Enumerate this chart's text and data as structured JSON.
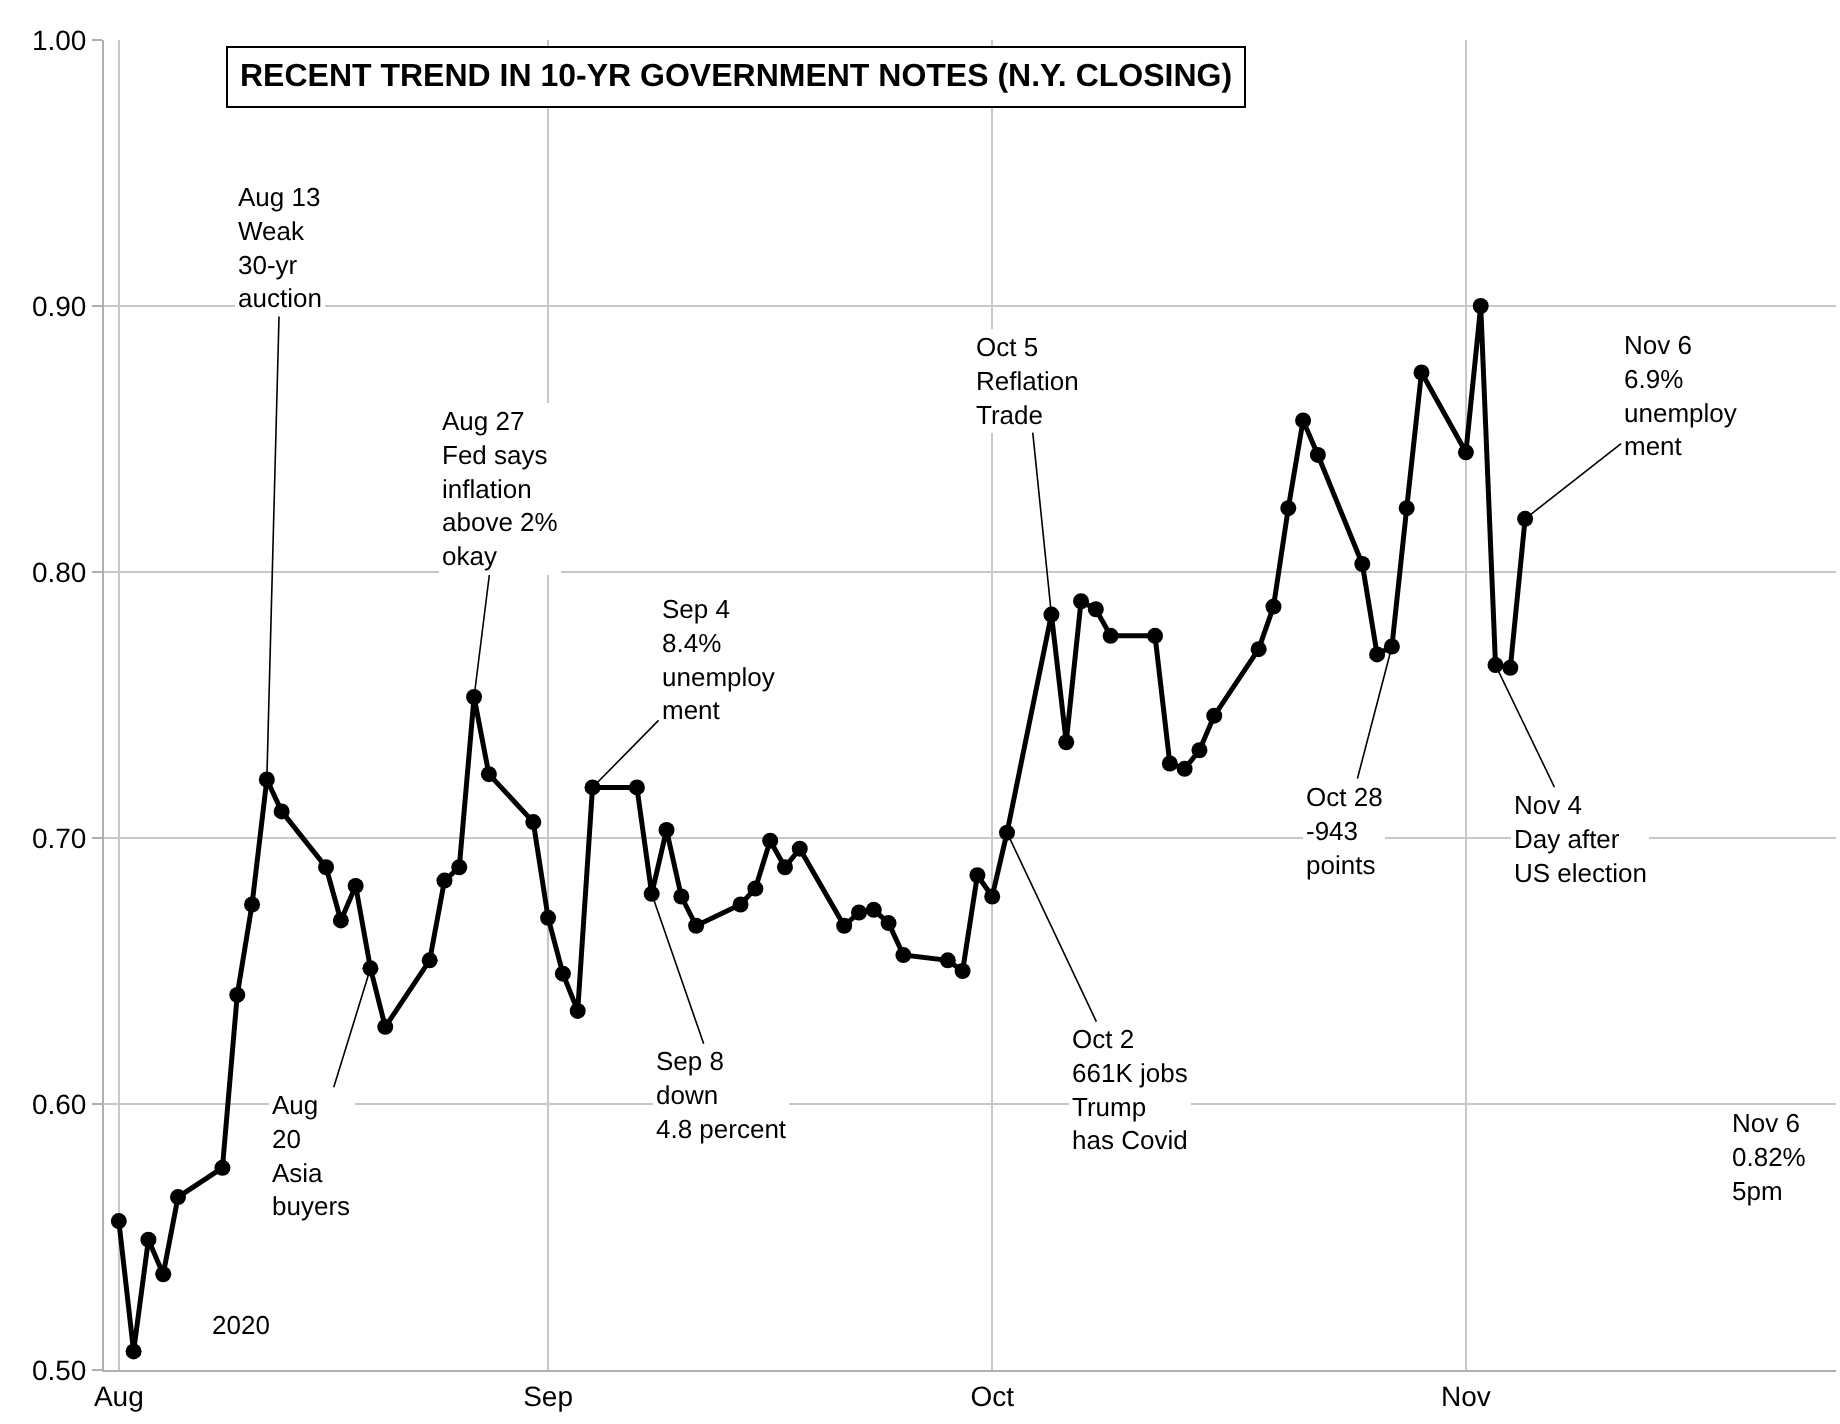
{
  "chart_data": {
    "type": "line",
    "title": "RECENT TREND IN 10-YR GOVERNMENT NOTES (N.Y. CLOSING)",
    "x": [
      "2020-08-03",
      "2020-08-04",
      "2020-08-05",
      "2020-08-06",
      "2020-08-07",
      "2020-08-10",
      "2020-08-11",
      "2020-08-12",
      "2020-08-13",
      "2020-08-14",
      "2020-08-17",
      "2020-08-18",
      "2020-08-19",
      "2020-08-20",
      "2020-08-21",
      "2020-08-24",
      "2020-08-25",
      "2020-08-26",
      "2020-08-27",
      "2020-08-28",
      "2020-08-31",
      "2020-09-01",
      "2020-09-02",
      "2020-09-03",
      "2020-09-04",
      "2020-09-07",
      "2020-09-08",
      "2020-09-09",
      "2020-09-10",
      "2020-09-11",
      "2020-09-14",
      "2020-09-15",
      "2020-09-16",
      "2020-09-17",
      "2020-09-18",
      "2020-09-21",
      "2020-09-22",
      "2020-09-23",
      "2020-09-24",
      "2020-09-25",
      "2020-09-28",
      "2020-09-29",
      "2020-09-30",
      "2020-10-01",
      "2020-10-02",
      "2020-10-05",
      "2020-10-06",
      "2020-10-07",
      "2020-10-08",
      "2020-10-09",
      "2020-10-12",
      "2020-10-13",
      "2020-10-14",
      "2020-10-15",
      "2020-10-16",
      "2020-10-19",
      "2020-10-20",
      "2020-10-21",
      "2020-10-22",
      "2020-10-23",
      "2020-10-26",
      "2020-10-27",
      "2020-10-28",
      "2020-10-29",
      "2020-10-30",
      "2020-11-02",
      "2020-11-03",
      "2020-11-04",
      "2020-11-05",
      "2020-11-06"
    ],
    "series": [
      {
        "color": "#000000",
        "values": [
          0.556,
          0.507,
          0.549,
          0.536,
          0.565,
          0.576,
          0.641,
          0.675,
          0.722,
          0.71,
          0.689,
          0.669,
          0.682,
          0.651,
          0.629,
          0.654,
          0.684,
          0.689,
          0.753,
          0.724,
          0.706,
          0.67,
          0.649,
          0.635,
          0.719,
          0.719,
          0.679,
          0.703,
          0.678,
          0.667,
          0.675,
          0.681,
          0.699,
          0.689,
          0.696,
          0.667,
          0.672,
          0.673,
          0.668,
          0.656,
          0.654,
          0.65,
          0.686,
          0.678,
          0.702,
          0.784,
          0.736,
          0.789,
          0.786,
          0.776,
          0.776,
          0.728,
          0.726,
          0.733,
          0.746,
          0.771,
          0.787,
          0.824,
          0.857,
          0.844,
          0.803,
          0.769,
          0.772,
          0.824,
          0.875,
          0.845,
          0.9,
          0.765,
          0.764,
          0.82
        ]
      }
    ],
    "xlim": [
      "2020-08-02",
      "2020-11-27"
    ],
    "xticks": [
      {
        "value": "2020-08-03",
        "label": "Aug"
      },
      {
        "value": "2020-09-01",
        "label": "Sep"
      },
      {
        "value": "2020-10-01",
        "label": "Oct"
      },
      {
        "value": "2020-11-02",
        "label": "Nov"
      }
    ],
    "ylim": [
      0.5,
      1.0
    ],
    "yticks": [
      {
        "value": 0.5,
        "label": "0.50"
      },
      {
        "value": 0.6,
        "label": "0.60"
      },
      {
        "value": 0.7,
        "label": "0.70"
      },
      {
        "value": 0.8,
        "label": "0.80"
      },
      {
        "value": 0.9,
        "label": "0.90"
      },
      {
        "value": 1.0,
        "label": "1.00"
      }
    ],
    "grid": true,
    "marker": "circle",
    "line_style": "solid",
    "annotations": [
      {
        "text": "Aug 13\nWeak\n30-yr\nauction",
        "x": "2020-08-13",
        "y": 0.722
      },
      {
        "text": "Aug\n20\nAsia\nbuyers",
        "x": "2020-08-20",
        "y": 0.651
      },
      {
        "text": "Aug 27\nFed says\ninflation\nabove 2%\nokay",
        "x": "2020-08-27",
        "y": 0.753
      },
      {
        "text": "Sep 4\n8.4%\nunemploy\nment",
        "x": "2020-09-04",
        "y": 0.719
      },
      {
        "text": "Sep 8\ndown\n4.8 percent",
        "x": "2020-09-08",
        "y": 0.679
      },
      {
        "text": "Oct 2\n661K jobs\nTrump\nhas Covid",
        "x": "2020-10-02",
        "y": 0.702
      },
      {
        "text": "Oct 5\nReflation\nTrade",
        "x": "2020-10-05",
        "y": 0.784
      },
      {
        "text": "Oct 28\n-943\npoints",
        "x": "2020-10-28",
        "y": 0.772
      },
      {
        "text": "Nov 4\nDay after\nUS election",
        "x": "2020-11-04",
        "y": 0.765
      },
      {
        "text": "Nov 6\n6.9%\nunemploy\nment",
        "x": "2020-11-06",
        "y": 0.82
      },
      "2020",
      "Nov 6\n0.82%\n5pm"
    ]
  }
}
